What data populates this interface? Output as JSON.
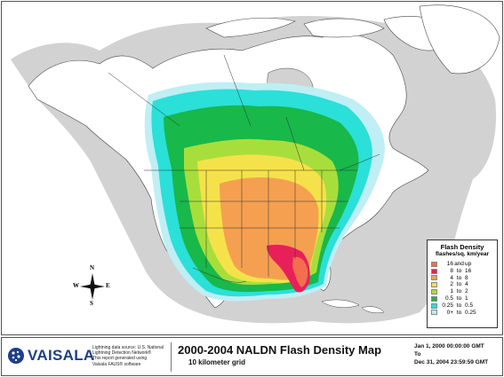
{
  "map": {
    "background": "#ffffff",
    "land_fill": "#ffffff",
    "no_data_fill": "#cfcfcf",
    "border_color": "#555555"
  },
  "legend": {
    "title": "Flash Density",
    "subtitle": "flashes/sq. km/year",
    "classes": [
      {
        "low": "16",
        "sep": "and",
        "high": "up",
        "color": "#f26e4e"
      },
      {
        "low": "8",
        "sep": "to",
        "high": "16",
        "color": "#e8205a"
      },
      {
        "low": "4",
        "sep": "to",
        "high": "8",
        "color": "#f5a050"
      },
      {
        "low": "2",
        "sep": "to",
        "high": "4",
        "color": "#f5e24a"
      },
      {
        "low": "1",
        "sep": "to",
        "high": "2",
        "color": "#a8de3c"
      },
      {
        "low": "0.5",
        "sep": "to",
        "high": "1",
        "color": "#18b84a"
      },
      {
        "low": "0.25",
        "sep": "to",
        "high": "0.5",
        "color": "#2ae0d8"
      },
      {
        "low": "0+",
        "sep": "to",
        "high": "0.25",
        "color": "#bfeef5"
      }
    ]
  },
  "compass": {
    "n": "N",
    "s": "S",
    "e": "E",
    "w": "W"
  },
  "footer": {
    "brand": "VAISALA",
    "brand_color": "#1b3f8a",
    "credit_lines": [
      "Lightning data source: U.S. National",
      "Lightning Detection Network®",
      "This report generated using",
      "Vaisala FAUS® software"
    ],
    "title": "2000-2004 NALDN Flash Density Map",
    "subtitle": "10 kilometer grid",
    "date_from": "Jan 1, 2000 00:00:00 GMT",
    "date_to_label": "To",
    "date_to": "Dec 31, 2004 23:59:59 GMT"
  }
}
